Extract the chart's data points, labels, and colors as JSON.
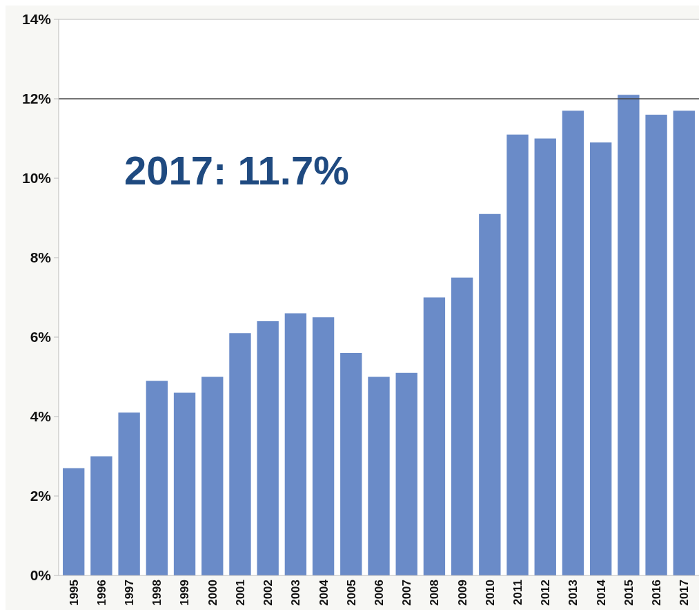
{
  "chart_data": {
    "type": "bar",
    "categories": [
      "1995",
      "1996",
      "1997",
      "1998",
      "1999",
      "2000",
      "2001",
      "2002",
      "2003",
      "2004",
      "2005",
      "2006",
      "2007",
      "2008",
      "2009",
      "2010",
      "2011",
      "2012",
      "2013",
      "2014",
      "2015",
      "2016",
      "2017"
    ],
    "values": [
      2.7,
      3.0,
      4.1,
      4.9,
      4.6,
      5.0,
      6.1,
      6.4,
      6.6,
      6.5,
      5.6,
      5.0,
      5.1,
      7.0,
      7.5,
      9.1,
      11.1,
      11.0,
      11.7,
      10.9,
      12.1,
      11.6,
      11.7
    ],
    "color": "#6a8bc8",
    "ylim": [
      0,
      14
    ],
    "yticks": [
      {
        "value": 0,
        "label": "0%"
      },
      {
        "value": 2,
        "label": "2%"
      },
      {
        "value": 4,
        "label": "4%"
      },
      {
        "value": 6,
        "label": "6%"
      },
      {
        "value": 8,
        "label": "8%"
      },
      {
        "value": 10,
        "label": "10%"
      },
      {
        "value": 12,
        "label": "12%"
      },
      {
        "value": 14,
        "label": "14%"
      }
    ],
    "ref_lines": [
      {
        "axis": "y",
        "value": 12,
        "color": "#444444"
      }
    ],
    "annotations": [
      "2017: 11.7%"
    ],
    "grid": false
  }
}
